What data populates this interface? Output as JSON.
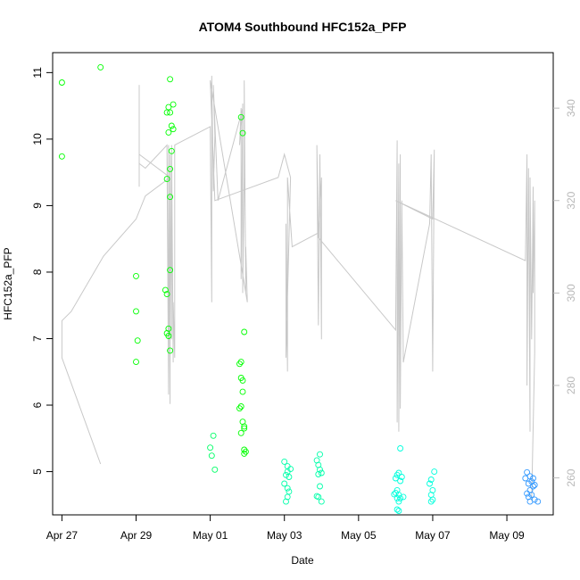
{
  "chart_data": {
    "type": "scatter",
    "title": "ATOM4 Southbound HFC152a_PFP",
    "xlabel": "Date",
    "ylabel": "HFC152a_PFP",
    "xlim": [
      "2016-04-26T18:00",
      "2016-05-10T06:00"
    ],
    "ylim": [
      4.35,
      11.3
    ],
    "y2lim": [
      252,
      352
    ],
    "x_ticks": [
      {
        "label": "Apr 27",
        "value": "2016-04-27"
      },
      {
        "label": "Apr 29",
        "value": "2016-04-29"
      },
      {
        "label": "May 01",
        "value": "2016-05-01"
      },
      {
        "label": "May 03",
        "value": "2016-05-03"
      },
      {
        "label": "May 05",
        "value": "2016-05-05"
      },
      {
        "label": "May 07",
        "value": "2016-05-07"
      },
      {
        "label": "May 09",
        "value": "2016-05-09"
      }
    ],
    "y_ticks": [
      "5",
      "6",
      "7",
      "8",
      "9",
      "10",
      "11"
    ],
    "y2_ticks": [
      "260",
      "280",
      "300",
      "320",
      "340"
    ],
    "series": [
      {
        "color": "#00ff00",
        "points": [
          [
            "2016-04-27T00:00",
            10.85
          ],
          [
            "2016-04-27T00:00",
            9.74
          ],
          [
            "2016-04-28T01:00",
            11.08
          ],
          [
            "2016-04-29T00:00",
            7.94
          ],
          [
            "2016-04-29T00:00",
            7.41
          ],
          [
            "2016-04-29T01:00",
            6.97
          ],
          [
            "2016-04-29T00:00",
            6.65
          ],
          [
            "2016-04-29T22:00",
            10.9
          ],
          [
            "2016-04-29T21:00",
            10.48
          ],
          [
            "2016-04-29T20:00",
            10.4
          ],
          [
            "2016-04-29T22:00",
            10.4
          ],
          [
            "2016-04-30T00:00",
            10.52
          ],
          [
            "2016-04-29T23:00",
            10.2
          ],
          [
            "2016-04-29T21:00",
            10.1
          ],
          [
            "2016-04-30T00:00",
            10.15
          ],
          [
            "2016-04-29T23:00",
            9.82
          ],
          [
            "2016-04-29T22:00",
            9.55
          ],
          [
            "2016-04-29T20:00",
            9.4
          ],
          [
            "2016-04-29T22:00",
            9.13
          ],
          [
            "2016-04-29T22:00",
            8.03
          ],
          [
            "2016-04-29T19:00",
            7.73
          ],
          [
            "2016-04-29T20:00",
            7.67
          ],
          [
            "2016-04-29T21:00",
            7.15
          ],
          [
            "2016-04-29T20:00",
            7.08
          ],
          [
            "2016-04-29T21:00",
            7.04
          ],
          [
            "2016-04-29T22:00",
            6.82
          ],
          [
            "2016-05-01T20:00",
            10.33
          ],
          [
            "2016-05-01T21:00",
            10.09
          ],
          [
            "2016-05-01T22:00",
            7.1
          ],
          [
            "2016-05-01T20:00",
            6.65
          ],
          [
            "2016-05-01T19:00",
            6.62
          ],
          [
            "2016-05-01T20:00",
            6.41
          ],
          [
            "2016-05-01T21:00",
            6.37
          ],
          [
            "2016-05-01T21:00",
            6.2
          ],
          [
            "2016-05-01T20:00",
            5.98
          ],
          [
            "2016-05-01T19:00",
            5.95
          ],
          [
            "2016-05-01T21:00",
            5.75
          ],
          [
            "2016-05-01T22:00",
            5.68
          ],
          [
            "2016-05-01T22:00",
            5.65
          ],
          [
            "2016-05-01T20:00",
            5.58
          ],
          [
            "2016-05-01T22:00",
            5.33
          ],
          [
            "2016-05-01T23:00",
            5.3
          ],
          [
            "2016-05-01T22:00",
            5.27
          ]
        ]
      },
      {
        "color": "#00ff66",
        "points": [
          [
            "2016-05-01T02:00",
            5.54
          ],
          [
            "2016-05-01T00:00",
            5.36
          ],
          [
            "2016-05-01T01:00",
            5.24
          ],
          [
            "2016-05-01T03:00",
            5.03
          ]
        ]
      },
      {
        "color": "#00ffaa",
        "points": [
          [
            "2016-05-03T00:00",
            5.15
          ],
          [
            "2016-05-03T02:00",
            5.08
          ],
          [
            "2016-05-03T04:00",
            5.04
          ],
          [
            "2016-05-03T02:00",
            5.0
          ],
          [
            "2016-05-03T01:00",
            4.95
          ],
          [
            "2016-05-03T03:00",
            4.92
          ],
          [
            "2016-05-03T00:00",
            4.82
          ],
          [
            "2016-05-03T02:00",
            4.75
          ],
          [
            "2016-05-03T03:00",
            4.7
          ],
          [
            "2016-05-03T02:00",
            4.62
          ],
          [
            "2016-05-03T01:00",
            4.55
          ],
          [
            "2016-05-03T23:00",
            5.26
          ],
          [
            "2016-05-03T22:00",
            5.1
          ],
          [
            "2016-05-03T21:00",
            5.17
          ],
          [
            "2016-05-03T23:00",
            5.03
          ],
          [
            "2016-05-04T00:00",
            4.98
          ],
          [
            "2016-05-03T22:00",
            4.96
          ],
          [
            "2016-05-03T23:00",
            4.78
          ],
          [
            "2016-05-03T21:00",
            4.63
          ],
          [
            "2016-05-03T22:00",
            4.62
          ],
          [
            "2016-05-04T00:00",
            4.55
          ]
        ]
      },
      {
        "color": "#00ffdd",
        "points": [
          [
            "2016-05-06T03:00",
            5.35
          ],
          [
            "2016-05-06T02:00",
            4.98
          ],
          [
            "2016-05-06T01:00",
            4.95
          ],
          [
            "2016-05-06T04:00",
            4.92
          ],
          [
            "2016-05-06T00:00",
            4.9
          ],
          [
            "2016-05-06T03:00",
            4.86
          ],
          [
            "2016-05-06T01:00",
            4.72
          ],
          [
            "2016-05-06T00:00",
            4.68
          ],
          [
            "2016-05-05T23:00",
            4.66
          ],
          [
            "2016-05-06T02:00",
            4.65
          ],
          [
            "2016-05-06T05:00",
            4.62
          ],
          [
            "2016-05-06T01:00",
            4.6
          ],
          [
            "2016-05-06T03:00",
            4.6
          ],
          [
            "2016-05-06T02:00",
            4.55
          ],
          [
            "2016-05-06T01:00",
            4.43
          ],
          [
            "2016-05-06T02:00",
            4.41
          ],
          [
            "2016-05-07T01:00",
            5.0
          ],
          [
            "2016-05-06T23:00",
            4.88
          ],
          [
            "2016-05-06T22:00",
            4.82
          ],
          [
            "2016-05-07T00:00",
            4.72
          ],
          [
            "2016-05-06T23:00",
            4.65
          ],
          [
            "2016-05-07T00:00",
            4.58
          ],
          [
            "2016-05-06T23:00",
            4.55
          ]
        ]
      },
      {
        "color": "#3399ff",
        "points": [
          [
            "2016-05-09T13:00",
            4.99
          ],
          [
            "2016-05-09T15:00",
            4.93
          ],
          [
            "2016-05-09T12:00",
            4.9
          ],
          [
            "2016-05-09T17:00",
            4.9
          ],
          [
            "2016-05-09T16:00",
            4.85
          ],
          [
            "2016-05-09T14:00",
            4.82
          ],
          [
            "2016-05-09T18:00",
            4.8
          ],
          [
            "2016-05-09T17:00",
            4.78
          ],
          [
            "2016-05-09T15:00",
            4.72
          ],
          [
            "2016-05-09T13:00",
            4.67
          ],
          [
            "2016-05-09T16:00",
            4.65
          ],
          [
            "2016-05-09T14:00",
            4.62
          ],
          [
            "2016-05-09T18:00",
            4.58
          ],
          [
            "2016-05-09T15:00",
            4.55
          ],
          [
            "2016-05-09T20:00",
            4.55
          ]
        ]
      }
    ],
    "line_series": {
      "color": "#c8c8c8",
      "axis": "right",
      "points": [
        [
          "2016-04-28T01:00",
          263
        ],
        [
          "2016-04-27T00:00",
          286
        ],
        [
          "2016-04-27T00:00",
          294
        ],
        [
          "2016-04-27T06:00",
          296
        ],
        [
          "2016-04-28T03:00",
          308
        ],
        [
          "2016-04-29T00:00",
          316
        ],
        [
          "2016-04-29T06:00",
          321
        ],
        [
          "2016-04-29T22:00",
          325
        ],
        [
          "2016-04-29T02:00",
          330
        ],
        [
          "2016-04-29T02:00",
          323
        ],
        [
          "2016-04-29T02:00",
          345
        ],
        [
          "2016-04-29T02:00",
          328
        ],
        [
          "2016-04-29T06:00",
          327
        ],
        [
          "2016-04-29T20:00",
          332
        ],
        [
          "2016-04-29T21:00",
          278
        ],
        [
          "2016-04-29T21:00",
          332
        ],
        [
          "2016-04-29T22:00",
          276
        ],
        [
          "2016-04-29T22:00",
          330
        ],
        [
          "2016-04-29T23:00",
          290
        ],
        [
          "2016-04-29T23:00",
          332
        ],
        [
          "2016-04-30T00:00",
          285
        ],
        [
          "2016-04-30T00:00",
          298
        ],
        [
          "2016-04-30T01:00",
          286
        ],
        [
          "2016-04-30T01:00",
          304
        ],
        [
          "2016-04-30T01:00",
          332
        ],
        [
          "2016-05-01T00:00",
          336
        ],
        [
          "2016-05-01T01:00",
          298
        ],
        [
          "2016-05-01T01:00",
          347
        ],
        [
          "2016-05-01T02:00",
          322
        ],
        [
          "2016-05-01T03:00",
          334
        ],
        [
          "2016-05-01T02:00",
          345
        ],
        [
          "2016-05-01T05:00",
          320
        ],
        [
          "2016-05-01T21:00",
          340
        ],
        [
          "2016-05-01T19:00",
          332
        ],
        [
          "2016-05-01T20:00",
          340
        ],
        [
          "2016-05-01T20:00",
          303
        ],
        [
          "2016-05-01T21:00",
          341
        ],
        [
          "2016-05-01T21:00",
          300
        ],
        [
          "2016-05-01T22:00",
          325
        ],
        [
          "2016-05-01T22:00",
          346
        ],
        [
          "2016-05-01T23:00",
          300
        ],
        [
          "2016-05-01T23:00",
          310
        ],
        [
          "2016-05-02T00:00",
          298
        ],
        [
          "2016-05-01T00:00",
          346
        ],
        [
          "2016-05-01T03:00",
          320
        ],
        [
          "2016-05-02T20:00",
          325
        ],
        [
          "2016-05-03T00:00",
          330
        ],
        [
          "2016-05-03T04:00",
          325
        ],
        [
          "2016-05-03T01:00",
          286
        ],
        [
          "2016-05-03T01:00",
          315
        ],
        [
          "2016-05-03T02:00",
          283
        ],
        [
          "2016-05-03T02:00",
          325
        ],
        [
          "2016-05-03T05:00",
          310
        ],
        [
          "2016-05-03T22:00",
          313
        ],
        [
          "2016-05-03T21:00",
          332
        ],
        [
          "2016-05-03T22:00",
          293
        ],
        [
          "2016-05-03T23:00",
          330
        ],
        [
          "2016-05-04T00:00",
          290
        ],
        [
          "2016-05-04T00:00",
          325
        ],
        [
          "2016-05-03T22:00",
          312
        ],
        [
          "2016-05-06T00:00",
          292
        ],
        [
          "2016-05-06T01:00",
          333
        ],
        [
          "2016-05-06T01:00",
          272
        ],
        [
          "2016-05-06T02:00",
          328
        ],
        [
          "2016-05-06T02:00",
          270
        ],
        [
          "2016-05-06T03:00",
          330
        ],
        [
          "2016-05-06T03:00",
          275
        ],
        [
          "2016-05-06T04:00",
          320
        ],
        [
          "2016-05-06T05:00",
          285
        ],
        [
          "2016-05-06T22:00",
          315
        ],
        [
          "2016-05-06T23:00",
          330
        ],
        [
          "2016-05-07T00:00",
          283
        ],
        [
          "2016-05-07T01:00",
          331
        ],
        [
          "2016-05-07T00:00",
          316
        ],
        [
          "2016-05-06T00:00",
          320
        ],
        [
          "2016-05-09T12:00",
          307
        ],
        [
          "2016-05-09T13:00",
          330
        ],
        [
          "2016-05-09T13:00",
          280
        ],
        [
          "2016-05-09T14:00",
          327
        ],
        [
          "2016-05-09T15:00",
          270
        ],
        [
          "2016-05-09T15:00",
          325
        ],
        [
          "2016-05-09T16:00",
          290
        ],
        [
          "2016-05-09T17:00",
          323
        ],
        [
          "2016-05-09T17:00",
          300
        ],
        [
          "2016-05-09T18:00",
          320
        ],
        [
          "2016-05-09T18:00",
          287
        ],
        [
          "2016-05-09T16:00",
          255
        ]
      ]
    }
  }
}
